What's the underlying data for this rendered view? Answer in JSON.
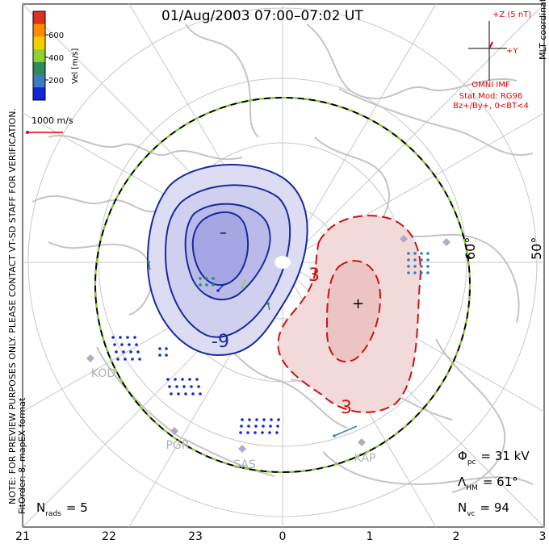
{
  "title": "01/Aug/2003 07:00–07:02 UT",
  "colorbar": {
    "axis_label": "Vel [m/s]",
    "ticks": [
      "600",
      "400",
      "200"
    ],
    "colors": [
      "#e0301e",
      "#ff8c00",
      "#f5d000",
      "#8fd12f",
      "#2e8b57",
      "#3a7cc0",
      "#1426d6"
    ]
  },
  "coordinate_label": "MLT coordinates",
  "preview_note": "NOTE: FOR PREVIEW PURPOSES ONLY. PLEASE CONTACT VT-SD STAFF FOR VERIFICATION.",
  "fit_note": "FitOrder: 8, mapEX format",
  "vector_scale": "1000 m/s",
  "imf": {
    "bz_label": "+Z (5 nT)",
    "by_label": "+Y",
    "caption": [
      "OMNI IMF",
      "Stat Mod: RG96",
      "Bz+/By+, 0<BT<4"
    ],
    "color": "#e00000"
  },
  "latitude_labels": [
    "60°",
    "50°"
  ],
  "radars": [
    "KOD",
    "PGR",
    "SAS",
    "KAP"
  ],
  "contours": {
    "negative_label": "-9",
    "positive_labels": [
      "3",
      "3"
    ],
    "min_marker": "–",
    "max_marker": "+",
    "negative_color": "#1a2a9a",
    "positive_color": "#c81414"
  },
  "stats": {
    "phi_symbol": "Φ",
    "phi_sub": "pc",
    "phi_value": "= 31 kV",
    "lambda_symbol": "Λ",
    "lambda_sub": "HM",
    "lambda_value": "= 61°",
    "nvc_symbol": "N",
    "nvc_sub": "vc",
    "nvc_value": "= 94",
    "nrads_symbol": "N",
    "nrads_sub": "rads",
    "nrads_value": "= 5"
  },
  "mlt_axis": [
    "21",
    "22",
    "23",
    "0",
    "1",
    "2",
    "3"
  ]
}
